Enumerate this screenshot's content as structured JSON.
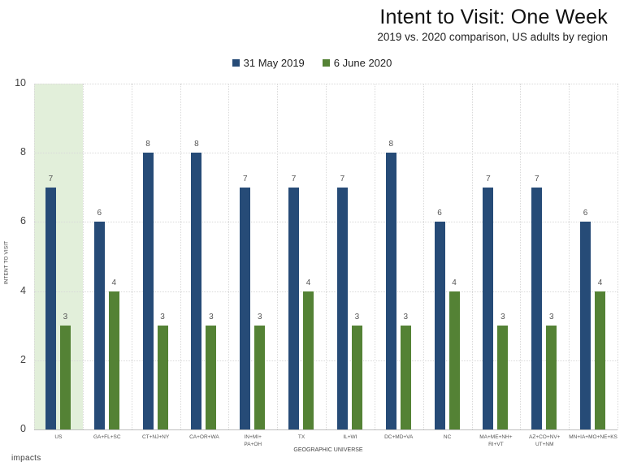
{
  "header": {
    "title": "Intent to Visit: One Week",
    "subtitle": "2019 vs. 2020 comparison, US adults by region"
  },
  "legend": [
    {
      "label": "31 May 2019",
      "color": "#264b77"
    },
    {
      "label": "6 June 2020",
      "color": "#548235"
    }
  ],
  "colors": {
    "series_2019": "#264b77",
    "series_2020": "#548235",
    "highlight": "#e2efda"
  },
  "yaxis": {
    "label": "INTENT TO VISIT",
    "ticks": [
      "0",
      "2",
      "4",
      "6",
      "8",
      "10"
    ]
  },
  "xaxis": {
    "label": "GEOGRAPHIC UNIVERSE"
  },
  "footer": {
    "logo_text": "impacts"
  },
  "chart_data": {
    "type": "bar",
    "title": "Intent to Visit: One Week",
    "subtitle": "2019 vs. 2020 comparison, US adults by region",
    "xlabel": "GEOGRAPHIC UNIVERSE",
    "ylabel": "INTENT TO VISIT",
    "ylim": [
      0,
      10
    ],
    "yticks": [
      0,
      2,
      4,
      6,
      8,
      10
    ],
    "grid": true,
    "legend_position": "top",
    "highlighted_category": "US",
    "categories": [
      "US",
      "GA+FL+SC",
      "CT+NJ+NY",
      "CA+OR+WA",
      "IN+MI+\nPA+OH",
      "TX",
      "IL+WI",
      "DC+MD+VA",
      "NC",
      "MA+ME+NH+\nRI+VT",
      "AZ+CO+NV+\nUT+NM",
      "MN+IA+MO+NE+KS"
    ],
    "series": [
      {
        "name": "31 May 2019",
        "color": "#264b77",
        "values": [
          7,
          6,
          8,
          8,
          7,
          7,
          7,
          8,
          6,
          7,
          7,
          6
        ]
      },
      {
        "name": "6 June 2020",
        "color": "#548235",
        "values": [
          3,
          4,
          3,
          3,
          3,
          4,
          3,
          3,
          4,
          3,
          3,
          4
        ]
      }
    ]
  }
}
